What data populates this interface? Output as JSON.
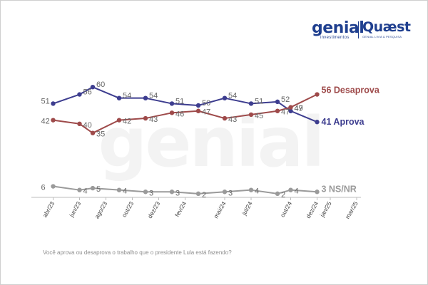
{
  "logos": {
    "genial": {
      "name": "genial",
      "sub": "investimentos"
    },
    "quaest": {
      "name": "Quæst",
      "sub": "GENIAL LIVIA & PESQUISA"
    }
  },
  "watermark": "genial",
  "question": "Você aprova ou desaprova o trabalho que o presidente Lula está fazendo?",
  "colors": {
    "aprova": "#3d3d8f",
    "desaprova": "#9e4a4a",
    "nsnr": "#9a9a9a"
  },
  "chart_data": {
    "type": "line",
    "title": "",
    "xlabel": "",
    "ylabel": "",
    "ylim": [
      0,
      65
    ],
    "grid": false,
    "legend": "end-of-line labels",
    "tick_labels": [
      "abr/23",
      "jun/23",
      "ago/23",
      "out/23",
      "dez/23",
      "fev/24",
      "mai/24",
      "jul/24",
      "out/24",
      "dez/24",
      "jan/25",
      "mar/25"
    ],
    "x": [
      1,
      3,
      5,
      7,
      9,
      11,
      14,
      16,
      19,
      21,
      22,
      24
    ],
    "series": [
      {
        "name": "Aprova",
        "end_label": "41 Aprova",
        "points": [
          {
            "x": 1,
            "y": 51,
            "label": "51"
          },
          {
            "x": 3,
            "y": 56,
            "label": "56"
          },
          {
            "x": 4,
            "y": 60,
            "label": "60"
          },
          {
            "x": 6,
            "y": 54,
            "label": "54"
          },
          {
            "x": 8,
            "y": 54,
            "label": "54"
          },
          {
            "x": 10,
            "y": 51,
            "label": "51"
          },
          {
            "x": 12,
            "y": 50,
            "label": "50"
          },
          {
            "x": 14,
            "y": 54,
            "label": "54"
          },
          {
            "x": 16,
            "y": 51,
            "label": "51"
          },
          {
            "x": 18,
            "y": 52,
            "label": "52"
          },
          {
            "x": 19,
            "y": 47,
            "label": "47"
          },
          {
            "x": 21,
            "y": 41,
            "label": ""
          }
        ]
      },
      {
        "name": "Desaprova",
        "end_label": "56 Desaprova",
        "points": [
          {
            "x": 1,
            "y": 42,
            "label": "42"
          },
          {
            "x": 3,
            "y": 40,
            "label": "40"
          },
          {
            "x": 4,
            "y": 35,
            "label": "35"
          },
          {
            "x": 6,
            "y": 42,
            "label": "42"
          },
          {
            "x": 8,
            "y": 43,
            "label": "43"
          },
          {
            "x": 10,
            "y": 46,
            "label": "46"
          },
          {
            "x": 12,
            "y": 47,
            "label": "47"
          },
          {
            "x": 14,
            "y": 43,
            "label": "43"
          },
          {
            "x": 16,
            "y": 45,
            "label": "45"
          },
          {
            "x": 18,
            "y": 47,
            "label": "47"
          },
          {
            "x": 19,
            "y": 49,
            "label": "49"
          },
          {
            "x": 21,
            "y": 56,
            "label": ""
          }
        ]
      },
      {
        "name": "NS/NR",
        "end_label": "3 NS/NR",
        "points": [
          {
            "x": 1,
            "y": 6,
            "label": "6"
          },
          {
            "x": 3,
            "y": 4,
            "label": "4"
          },
          {
            "x": 4,
            "y": 5,
            "label": "5"
          },
          {
            "x": 6,
            "y": 4,
            "label": "4"
          },
          {
            "x": 8,
            "y": 3,
            "label": "3"
          },
          {
            "x": 10,
            "y": 3,
            "label": "3"
          },
          {
            "x": 12,
            "y": 2,
            "label": "2"
          },
          {
            "x": 14,
            "y": 3,
            "label": "3"
          },
          {
            "x": 16,
            "y": 4,
            "label": "4"
          },
          {
            "x": 18,
            "y": 2,
            "label": "2"
          },
          {
            "x": 19,
            "y": 4,
            "label": "4"
          },
          {
            "x": 21,
            "y": 3,
            "label": ""
          }
        ]
      }
    ]
  }
}
